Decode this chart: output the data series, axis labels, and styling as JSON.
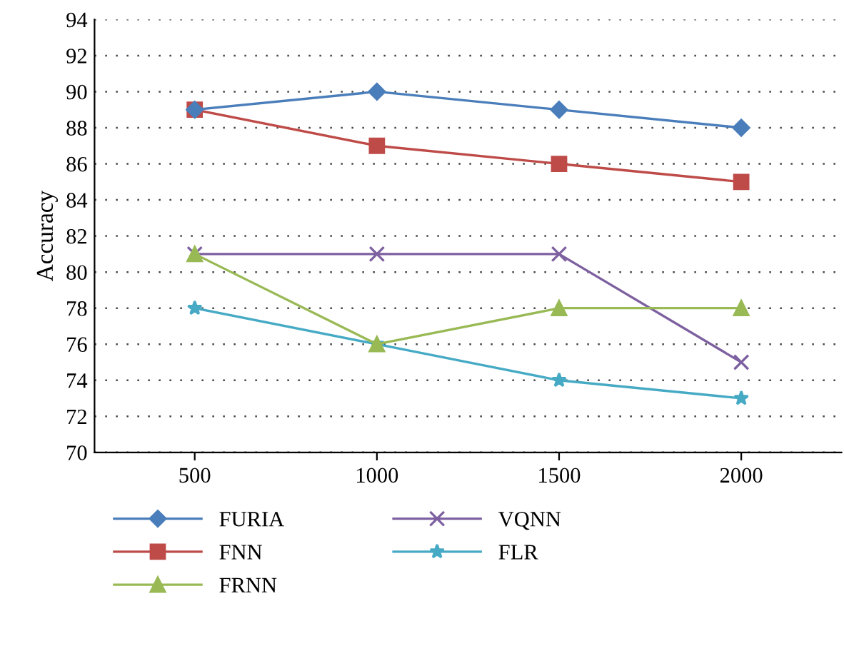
{
  "chart_data": {
    "type": "line",
    "ylabel": "Accuracy",
    "categories": [
      "500",
      "1000",
      "1500",
      "2000"
    ],
    "series": [
      {
        "name": "FURIA",
        "color": "#4a7ebb",
        "marker": "diamond",
        "values": [
          89,
          90,
          89,
          88
        ]
      },
      {
        "name": "FNN",
        "color": "#be4b48",
        "marker": "square",
        "values": [
          89,
          87,
          86,
          85
        ]
      },
      {
        "name": "FRNN",
        "color": "#98b954",
        "marker": "triangle",
        "values": [
          81,
          76,
          78,
          78
        ]
      },
      {
        "name": "VQNN",
        "color": "#7d60a0",
        "marker": "cross",
        "values": [
          81,
          81,
          81,
          75
        ]
      },
      {
        "name": "FLR",
        "color": "#46aac5",
        "marker": "star",
        "values": [
          78,
          76,
          74,
          73
        ]
      }
    ],
    "ylim": [
      70,
      94
    ],
    "yticks": [
      70,
      72,
      74,
      76,
      78,
      80,
      82,
      84,
      86,
      88,
      90,
      92,
      94
    ],
    "grid": "y",
    "legend": "bottom"
  }
}
